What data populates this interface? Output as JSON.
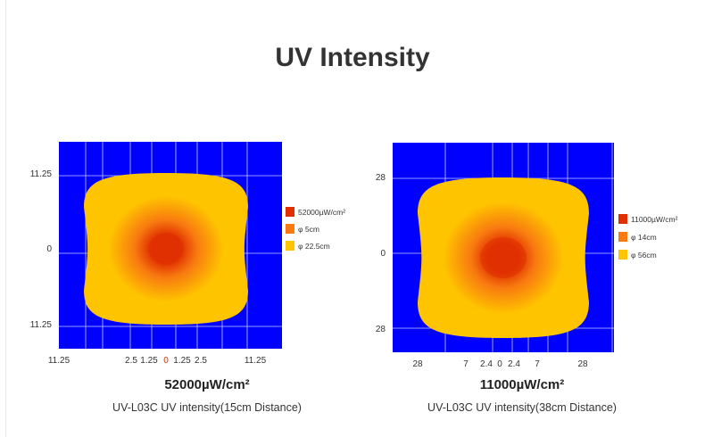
{
  "page": {
    "title": "UV Intensity"
  },
  "colors": {
    "background_field": "#0000ff",
    "grid": "#c8c8ff",
    "center": "#e03000",
    "mid": "#f87a10",
    "outer": "#ffc400"
  },
  "chart_data": [
    {
      "type": "heatmap",
      "title": "52000µW/cm²",
      "caption": "UV-L03C UV intensity(15cm Distance)",
      "y_ticks": [
        "11.25",
        "0",
        "11.25"
      ],
      "x_ticks": [
        "11.25",
        "2.5",
        "1.25",
        "0",
        "1.25",
        "2.5",
        "11.25"
      ],
      "legend": [
        {
          "label": "52000µW/cm²",
          "color": "#e03000"
        },
        {
          "label": "φ 5cm",
          "color": "#f87a10"
        },
        {
          "label": "φ 22.5cm",
          "color": "#ffc400"
        }
      ],
      "legend_position": "right"
    },
    {
      "type": "heatmap",
      "title": "11000µW/cm²",
      "caption": "UV-L03C UV intensity(38cm Distance)",
      "y_ticks": [
        "28",
        "0",
        "28"
      ],
      "x_ticks": [
        "28",
        "7",
        "2.4",
        "0",
        "2.4",
        "7",
        "28"
      ],
      "legend": [
        {
          "label": "11000µW/cm²",
          "color": "#e03000"
        },
        {
          "label": "φ 14cm",
          "color": "#f87a10"
        },
        {
          "label": "φ 56cm",
          "color": "#ffc400"
        }
      ],
      "legend_position": "right"
    }
  ]
}
